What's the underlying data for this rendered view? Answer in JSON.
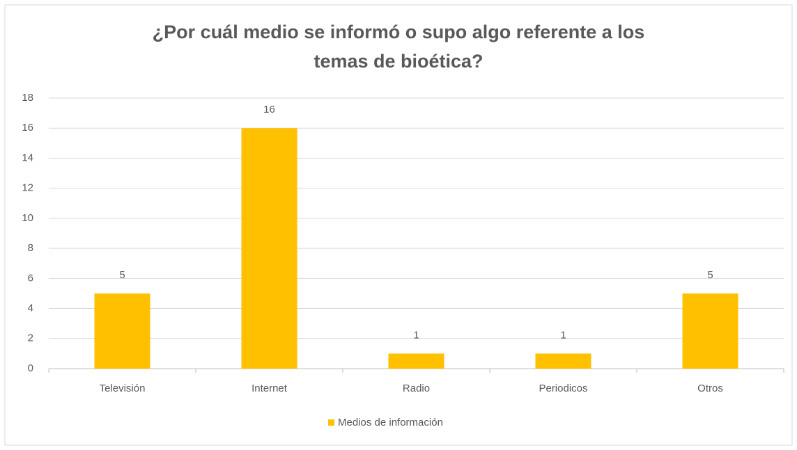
{
  "chart_data": {
    "type": "bar",
    "title": "¿Por cuál medio se informó o supo algo referente a los temas de bioética?",
    "categories": [
      "Televisión",
      "Internet",
      "Radio",
      "Periodicos",
      "Otros"
    ],
    "series": [
      {
        "name": "Medios de información",
        "color": "#ffc000",
        "values": [
          5,
          16,
          1,
          1,
          5
        ]
      }
    ],
    "ylim": [
      0,
      18
    ],
    "yticks": [
      0,
      2,
      4,
      6,
      8,
      10,
      12,
      14,
      16,
      18
    ],
    "grid": true,
    "legend": "bottom"
  }
}
